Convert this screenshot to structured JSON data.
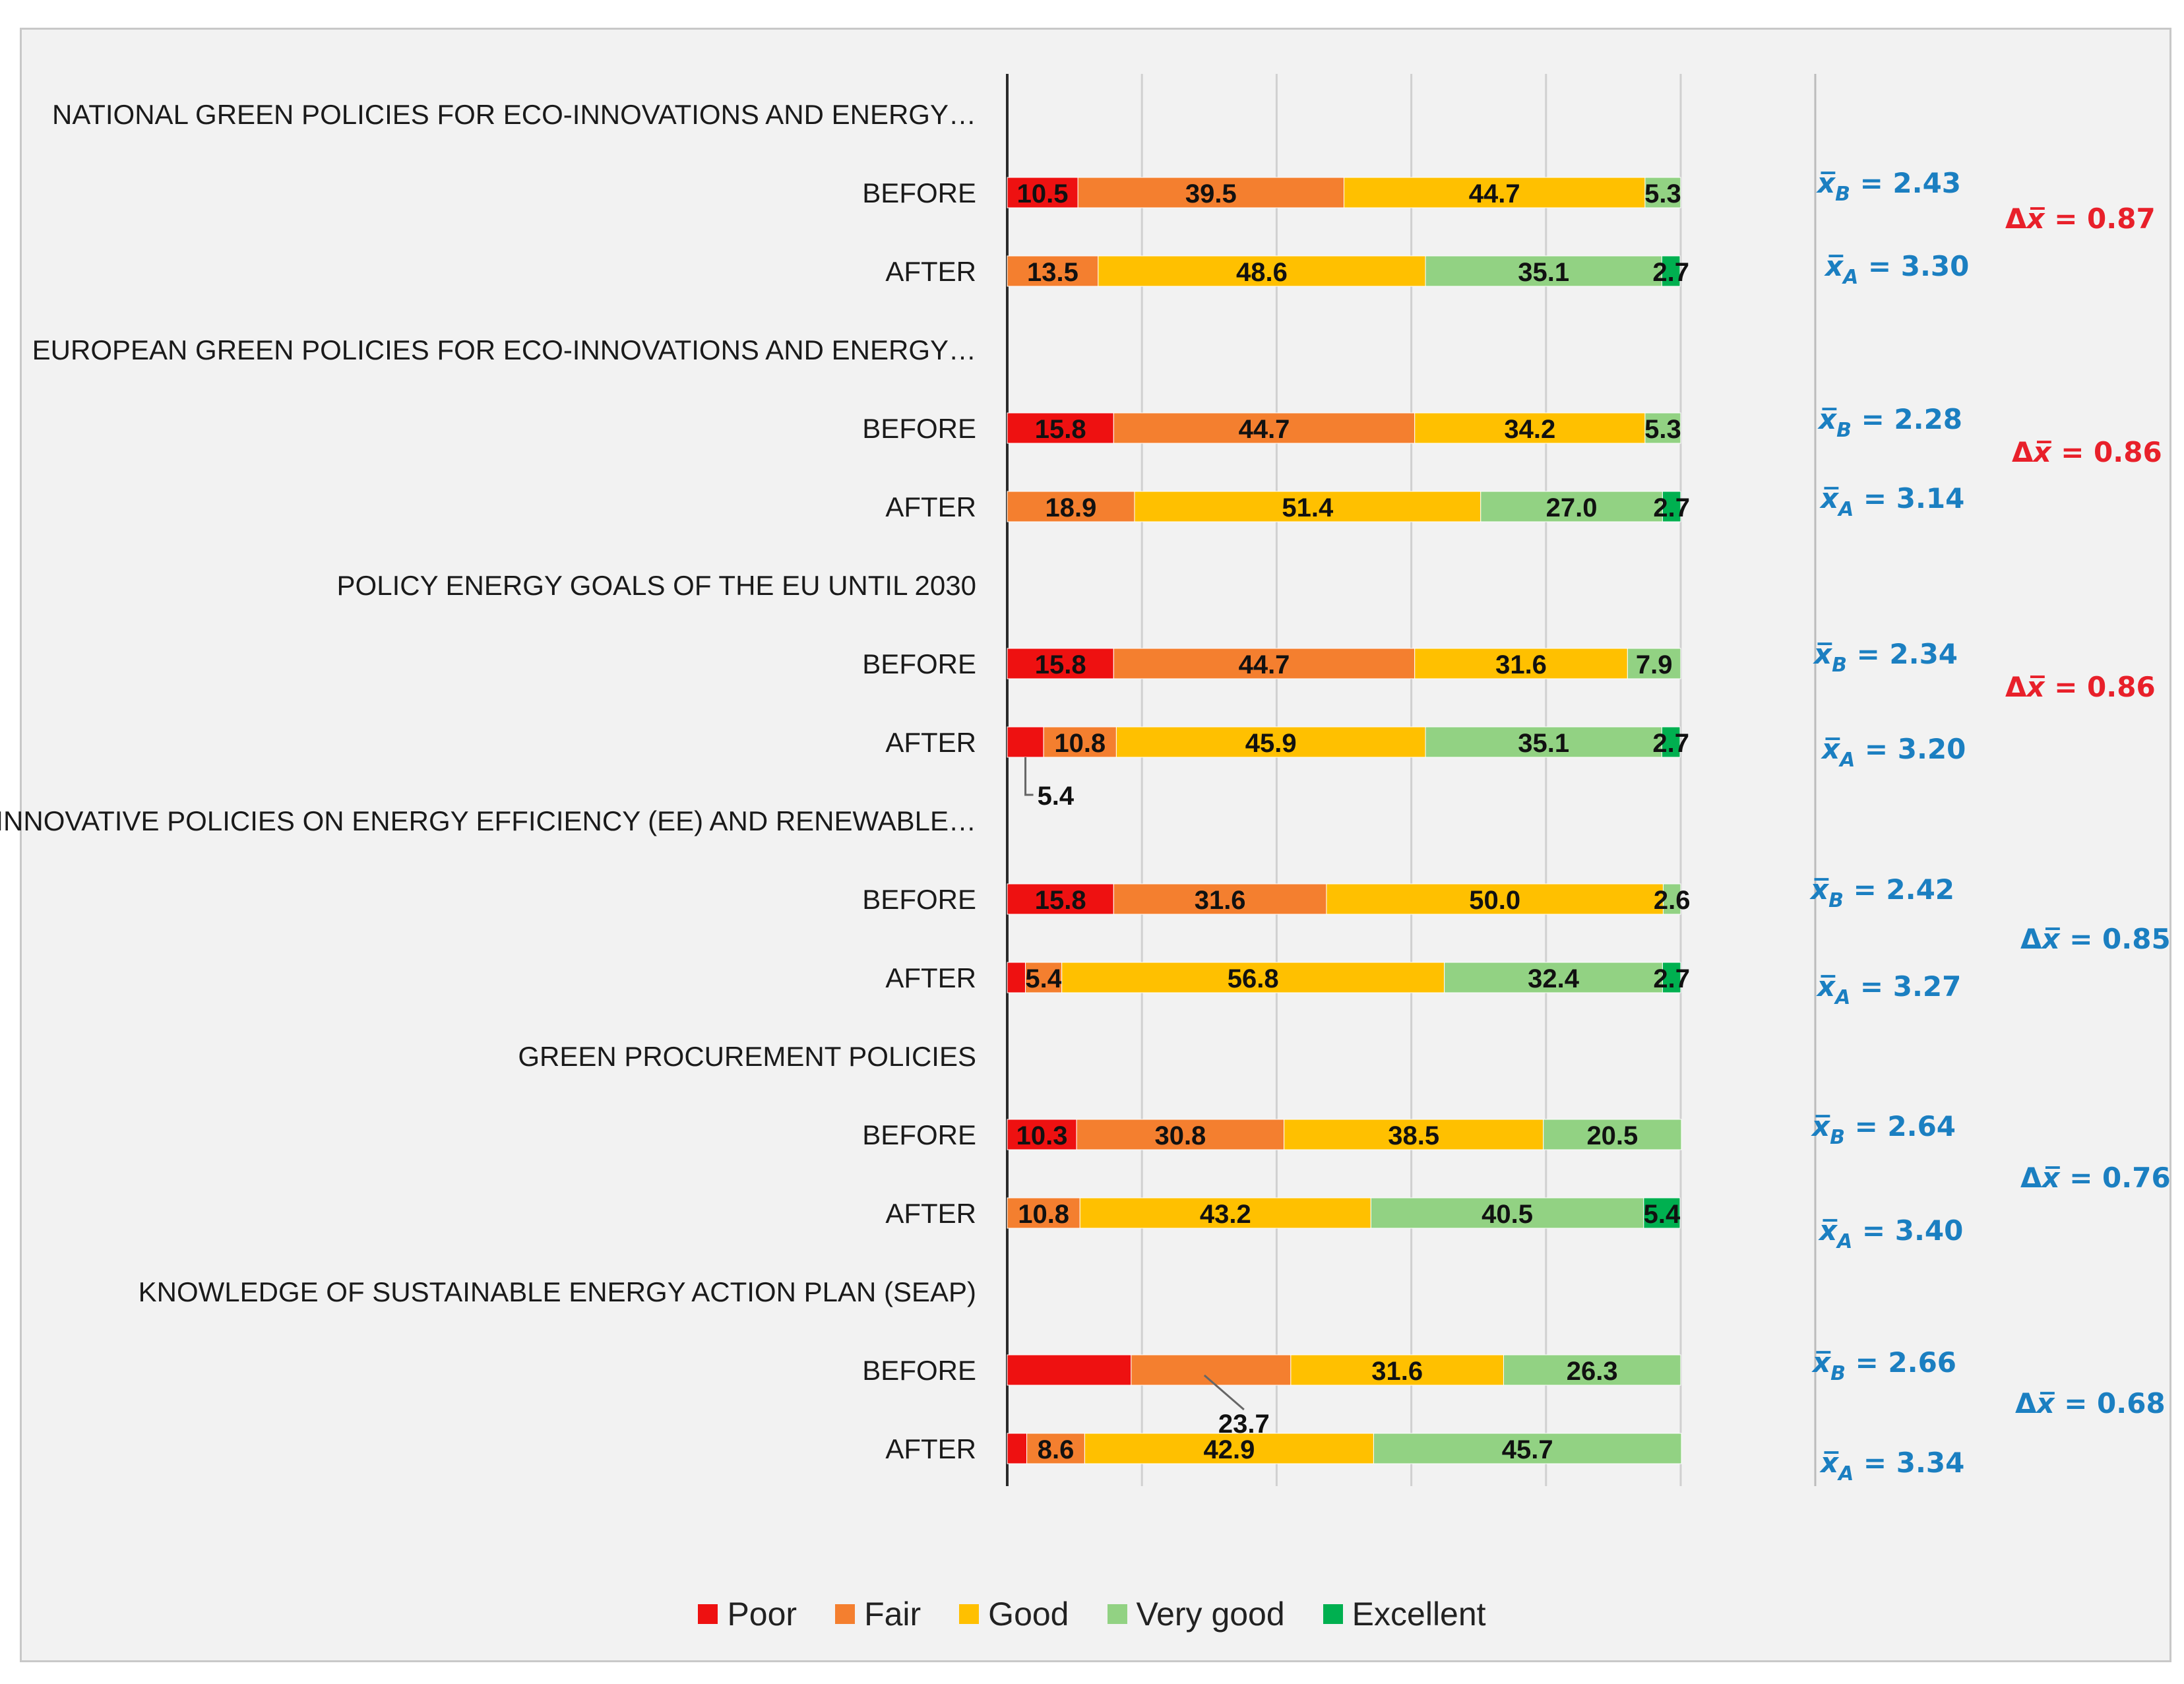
{
  "chart_data": {
    "type": "bar",
    "orientation": "horizontal",
    "stacked": true,
    "xlim": [
      0,
      100
    ],
    "grid": true,
    "legend_position": "bottom",
    "series": [
      {
        "name": "Poor",
        "color": "#ee1111"
      },
      {
        "name": "Fair",
        "color": "#f47f2f"
      },
      {
        "name": "Good",
        "color": "#ffc000"
      },
      {
        "name": "Very good",
        "color": "#92d283"
      },
      {
        "name": "Excellent",
        "color": "#00b050"
      }
    ],
    "groups": [
      {
        "title": "NATIONAL  GREEN POLICIES FOR ECO-INNOVATIONS  AND ENERGY…",
        "before": {
          "label": "BEFORE",
          "values": [
            10.5,
            39.5,
            44.7,
            5.3,
            0
          ],
          "value_labels": [
            "10.5",
            "39.5",
            "44.7",
            "5.3",
            ""
          ]
        },
        "after": {
          "label": "AFTER",
          "values": [
            0,
            13.5,
            48.6,
            35.1,
            2.7
          ],
          "value_labels": [
            "",
            "13.5",
            "48.6",
            "35.1",
            "2.7"
          ]
        },
        "mean_before": "= 2.43",
        "mean_after": "=  3.30",
        "delta": "= 0.87",
        "delta_color": "#e8202a"
      },
      {
        "title": "EUROPEAN  GREEN POLICIES FOR ECO-INNOVATIONS  AND ENERGY…",
        "before": {
          "label": "BEFORE",
          "values": [
            15.8,
            44.7,
            34.2,
            5.3,
            0
          ],
          "value_labels": [
            "15.8",
            "44.7",
            "34.2",
            "5.3",
            ""
          ]
        },
        "after": {
          "label": "AFTER",
          "values": [
            0,
            18.9,
            51.4,
            27.0,
            2.7
          ],
          "value_labels": [
            "",
            "18.9",
            "51.4",
            "27.0",
            "2.7"
          ]
        },
        "mean_before": "= 2.28",
        "mean_after": "=  3.14",
        "delta": "= 0.86",
        "delta_color": "#e8202a"
      },
      {
        "title": "POLICY ENERGY GOALS OF THE EU UNTIL 2030",
        "before": {
          "label": "BEFORE",
          "values": [
            15.8,
            44.7,
            31.6,
            7.9,
            0
          ],
          "value_labels": [
            "15.8",
            "44.7",
            "31.6",
            "7.9",
            ""
          ]
        },
        "after": {
          "label": "AFTER",
          "values": [
            5.4,
            10.8,
            45.9,
            35.1,
            2.7
          ],
          "value_labels": [
            "",
            "10.8",
            "45.9",
            "35.1",
            "2.7"
          ]
        },
        "callout_after": "5.4",
        "mean_before": "= 2.34",
        "mean_after": "=  3.20",
        "delta": "= 0.86",
        "delta_color": "#e8202a"
      },
      {
        "title": "INNOVATIVE POLICIES ON ENERGY EFFICIENCY (EE) AND RENEWABLE…",
        "before": {
          "label": "BEFORE",
          "values": [
            15.8,
            31.6,
            50.0,
            2.6,
            0
          ],
          "value_labels": [
            "15.8",
            "31.6",
            "50.0",
            "2.6",
            ""
          ]
        },
        "after": {
          "label": "AFTER",
          "values": [
            2.7,
            5.4,
            56.8,
            32.4,
            2.7
          ],
          "value_labels": [
            "",
            "5.4",
            "56.8",
            "32.4",
            "2.7"
          ]
        },
        "mean_before": "= 2.42",
        "mean_after": "=  3.27",
        "delta": "= 0.85",
        "delta_color": "#1b7fc1"
      },
      {
        "title": "GREEN PROCUREMENT POLICIES",
        "before": {
          "label": "BEFORE",
          "values": [
            10.3,
            30.8,
            38.5,
            20.5,
            0
          ],
          "value_labels": [
            "10.3",
            "30.8",
            "38.5",
            "20.5",
            ""
          ]
        },
        "after": {
          "label": "AFTER",
          "values": [
            0,
            10.8,
            43.2,
            40.5,
            5.4
          ],
          "value_labels": [
            "",
            "10.8",
            "43.2",
            "40.5",
            "5.4"
          ]
        },
        "mean_before": "= 2.64",
        "mean_after": "=  3.40",
        "delta": "= 0.76",
        "delta_color": "#1b7fc1"
      },
      {
        "title": "KNOWLEDGE OF SUSTAINABLE  ENERGY ACTION PLAN (SEAP)",
        "before": {
          "label": "BEFORE",
          "values": [
            18.4,
            23.7,
            31.6,
            26.3,
            0
          ],
          "value_labels": [
            "",
            "",
            "31.6",
            "26.3",
            ""
          ]
        },
        "callout_before": "23.7",
        "after": {
          "label": "AFTER",
          "values": [
            2.9,
            8.6,
            42.9,
            45.7,
            0
          ],
          "value_labels": [
            "",
            "8.6",
            "42.9",
            "45.7",
            ""
          ]
        },
        "mean_before": "= 2.66",
        "mean_after": "=  3.34",
        "delta": "= 0.68",
        "delta_color": "#1b7fc1"
      }
    ]
  },
  "symbols": {
    "x_bar": "x̅",
    "sub_before": "B",
    "sub_after": "A",
    "delta": "Δ"
  }
}
